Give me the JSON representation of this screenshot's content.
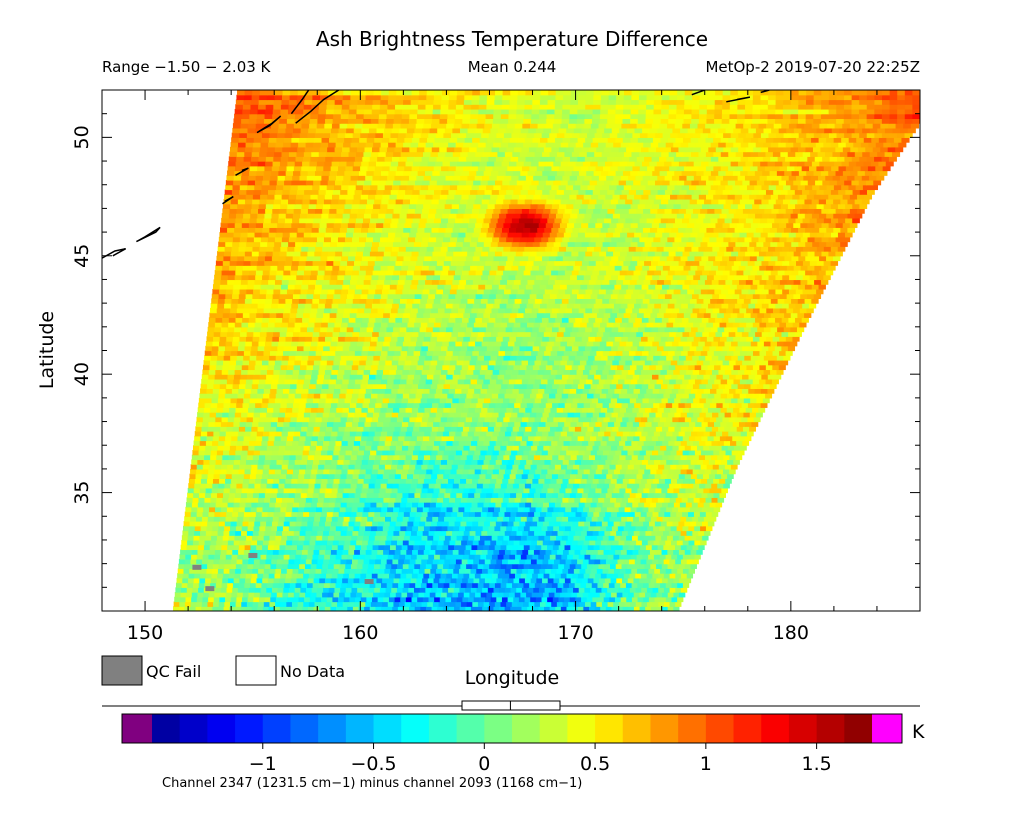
{
  "chart_data": {
    "type": "heatmap",
    "title": "Ash Brightness Temperature Difference",
    "header": {
      "range": "Range −1.50 − 2.03 K",
      "mean": "Mean 0.244",
      "source": "MetOp-2 2019-07-20 22:25Z"
    },
    "xlabel": "Longitude",
    "ylabel": "Latitude",
    "xlim": [
      148,
      186
    ],
    "ylim": [
      30,
      52
    ],
    "xticks": [
      150,
      160,
      170,
      180
    ],
    "yticks": [
      35,
      40,
      45,
      50
    ],
    "swath": {
      "left_edge": [
        [
          151.3,
          30
        ],
        [
          154.3,
          52
        ]
      ],
      "right_edge": [
        [
          174.8,
          30
        ],
        [
          177.5,
          36
        ],
        [
          180.7,
          42
        ],
        [
          183.8,
          47.5
        ],
        [
          186,
          50.5
        ],
        [
          186,
          52
        ]
      ]
    },
    "ash_plume": {
      "lon": 167.5,
      "lat": 46.2,
      "value": 1.6
    },
    "legend": [
      {
        "label": "QC Fail",
        "color": "#808080"
      },
      {
        "label": "No Data",
        "color": "#ffffff"
      }
    ],
    "colorbar": {
      "min": -1.5,
      "max": 1.75,
      "ticks": [
        -1,
        -0.5,
        0,
        0.5,
        1,
        1.5
      ],
      "tick_labels": [
        "−1",
        "−0.5",
        "0",
        "0.5",
        "1",
        "1.5"
      ],
      "unit": "K",
      "below_color": "#800080",
      "above_color": "#ff00ff",
      "label": "Channel 2347 (1231.5 cm−1) minus channel 2093 (1168 cm−1)",
      "mean_marker": 0.244,
      "range": [
        -1.5,
        2.03
      ]
    }
  }
}
